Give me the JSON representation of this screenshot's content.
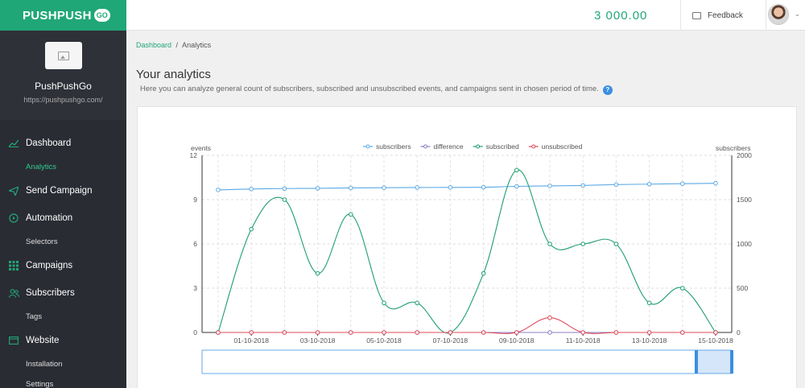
{
  "brand": {
    "name": "PUSHPUSH",
    "badge": "GO",
    "color": "#20a777"
  },
  "profile": {
    "logo_icon": "image-placeholder-icon",
    "site_name": "PushPushGo",
    "site_url": "https://pushpushgo.com/"
  },
  "nav": {
    "dashboard": {
      "label": "Dashboard",
      "icon": "line-chart-icon"
    },
    "analytics": {
      "label": "Analytics"
    },
    "send_campaign": {
      "label": "Send Campaign",
      "icon": "paper-plane-icon"
    },
    "automation": {
      "label": "Automation",
      "icon": "play-circle-icon"
    },
    "selectors": {
      "label": "Selectors"
    },
    "campaigns": {
      "label": "Campaigns",
      "icon": "grid-icon"
    },
    "subscribers": {
      "label": "Subscribers",
      "icon": "users-icon"
    },
    "tags": {
      "label": "Tags"
    },
    "website": {
      "label": "Website",
      "icon": "browser-window-icon"
    },
    "installation": {
      "label": "Installation"
    },
    "settings": {
      "label": "Settings"
    }
  },
  "topbar": {
    "balance": "3 000.00",
    "feedback_label": "Feedback",
    "feedback_icon": "comment-icon",
    "avatar_icon": "user-avatar",
    "caret_icon": "chevron-down-icon"
  },
  "breadcrumb": {
    "home": "Dashboard",
    "separator": "/",
    "current": "Analytics"
  },
  "page": {
    "title": "Your analytics",
    "description": "Here you can analyze general count of subscribers, subscribed and unsubscribed events, and campaigns sent in chosen period of time.",
    "help_icon": "question-circle-icon",
    "help_glyph": "?"
  },
  "chart_data": {
    "type": "line",
    "left_axis_label": "events",
    "right_axis_label": "subscribers",
    "left_ylim": [
      0,
      12
    ],
    "left_ticks": [
      "0",
      "3",
      "6",
      "9",
      "12"
    ],
    "right_ylim": [
      0,
      2000
    ],
    "right_ticks": [
      "0",
      "500",
      "1000",
      "1500",
      "2000"
    ],
    "x_labels": [
      "01-10-2018",
      "03-10-2018",
      "05-10-2018",
      "07-10-2018",
      "09-10-2018",
      "11-10-2018",
      "13-10-2018",
      "15-10-2018"
    ],
    "legend_position": "top-center",
    "grid": true,
    "series": [
      {
        "name": "subscribers",
        "axis": "right",
        "color": "#5aa9e6",
        "values": [
          1610,
          1620,
          1625,
          1628,
          1632,
          1635,
          1637,
          1638,
          1640,
          1650,
          1655,
          1660,
          1670,
          1675,
          1680,
          1685
        ]
      },
      {
        "name": "difference",
        "axis": "left",
        "color": "#8e7cc3",
        "values": [
          0,
          0,
          0,
          0,
          0,
          0,
          0,
          0,
          0,
          0,
          0,
          0,
          0,
          0,
          0,
          0
        ]
      },
      {
        "name": "subscribed",
        "axis": "left",
        "color": "#1e9e6e",
        "values": [
          0,
          7,
          9,
          4,
          8,
          2,
          2,
          0,
          4,
          11,
          6,
          6,
          6,
          2,
          3,
          0
        ]
      },
      {
        "name": "unsubscribed",
        "axis": "left",
        "color": "#e04b5a",
        "values": [
          0,
          0,
          0,
          0,
          0,
          0,
          0,
          0,
          0,
          0,
          1,
          0,
          0,
          0,
          0,
          0
        ]
      }
    ]
  }
}
